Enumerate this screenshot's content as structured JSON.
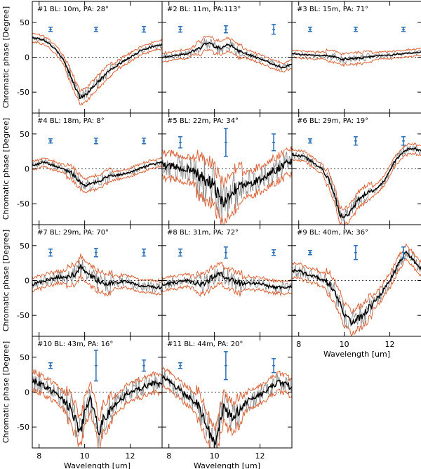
{
  "figure": {
    "x_label": "Wavelength [um]",
    "y_label": "Chromatic phase [Degree]",
    "x_ticks": [
      8,
      10,
      12
    ],
    "y_ticks": [
      -50,
      0,
      50
    ],
    "xlim": [
      7.7,
      13.4
    ],
    "ylim": [
      -80,
      80
    ]
  },
  "colors": {
    "mean": "#000000",
    "raw": "#8c8c8c",
    "envelope": "#d9653b",
    "errorbar": "#2a6fb7",
    "zero": "#000000"
  },
  "chart_data": [
    {
      "type": "line",
      "panel": "#1",
      "label": "#1  BL: 10m, PA: 28°",
      "baseline_m": 10,
      "pa_deg": 28,
      "noise": 3,
      "spread": 6,
      "x": [
        7.8,
        8.2,
        8.6,
        9.0,
        9.3,
        9.6,
        9.8,
        10.0,
        10.3,
        10.6,
        11.0,
        11.5,
        12.0,
        12.5,
        13.0,
        13.4
      ],
      "y": [
        28,
        25,
        15,
        0,
        -20,
        -45,
        -58,
        -55,
        -45,
        -35,
        -22,
        -10,
        0,
        10,
        15,
        18
      ],
      "error_bars": [
        {
          "x": 8.5,
          "half": 3
        },
        {
          "x": 10.5,
          "half": 3
        },
        {
          "x": 12.6,
          "half": 4
        }
      ],
      "error_bar_y": 40
    },
    {
      "type": "line",
      "panel": "#2",
      "label": "#2  BL: 11m, PA:113°",
      "baseline_m": 11,
      "pa_deg": 113,
      "noise": 3,
      "spread": 6,
      "x": [
        7.8,
        8.3,
        8.8,
        9.3,
        9.6,
        9.8,
        10.0,
        10.3,
        10.6,
        11.0,
        11.4,
        11.8,
        12.2,
        12.6,
        13.0,
        13.4
      ],
      "y": [
        0,
        3,
        5,
        12,
        20,
        22,
        15,
        12,
        18,
        10,
        5,
        0,
        -5,
        -10,
        -15,
        -10
      ],
      "error_bars": [
        {
          "x": 8.5,
          "half": 4
        },
        {
          "x": 10.5,
          "half": 5
        },
        {
          "x": 12.6,
          "half": 7
        }
      ],
      "error_bar_y": 40
    },
    {
      "type": "line",
      "panel": "#3",
      "label": "#3  BL: 15m, PA: 71°",
      "baseline_m": 15,
      "pa_deg": 71,
      "noise": 2,
      "spread": 5,
      "x": [
        7.8,
        8.5,
        9.2,
        9.6,
        10.0,
        10.5,
        11.0,
        11.5,
        12.0,
        12.5,
        13.0,
        13.4
      ],
      "y": [
        5,
        3,
        2,
        0,
        -3,
        -2,
        0,
        2,
        3,
        5,
        6,
        8
      ],
      "error_bars": [
        {
          "x": 8.5,
          "half": 3
        },
        {
          "x": 10.5,
          "half": 3
        },
        {
          "x": 12.6,
          "half": 3
        }
      ],
      "error_bar_y": 40
    },
    {
      "type": "line",
      "panel": "#4",
      "label": "#4  BL: 18m, PA:  8°",
      "baseline_m": 18,
      "pa_deg": 8,
      "noise": 3,
      "spread": 6,
      "x": [
        7.8,
        8.2,
        8.6,
        9.0,
        9.4,
        9.7,
        10.0,
        10.4,
        10.8,
        11.2,
        11.6,
        12.0,
        12.4,
        12.8,
        13.2,
        13.4
      ],
      "y": [
        5,
        10,
        5,
        0,
        -5,
        -15,
        -25,
        -20,
        -15,
        -10,
        -8,
        -5,
        0,
        5,
        8,
        10
      ],
      "error_bars": [
        {
          "x": 8.5,
          "half": 3
        },
        {
          "x": 10.5,
          "half": 4
        },
        {
          "x": 12.6,
          "half": 4
        }
      ],
      "error_bar_y": 40
    },
    {
      "type": "line",
      "panel": "#5",
      "label": "#5  BL: 22m, PA: 34°",
      "baseline_m": 22,
      "pa_deg": 34,
      "noise": 12,
      "spread": 18,
      "x": [
        7.8,
        8.3,
        8.8,
        9.2,
        9.6,
        9.9,
        10.2,
        10.5,
        10.8,
        11.2,
        11.6,
        12.0,
        12.5,
        13.0,
        13.4
      ],
      "y": [
        5,
        3,
        0,
        -5,
        -15,
        -20,
        -40,
        -50,
        -30,
        -25,
        -20,
        -15,
        -5,
        5,
        10
      ],
      "error_bars": [
        {
          "x": 8.5,
          "half": 8
        },
        {
          "x": 10.5,
          "half": 20
        },
        {
          "x": 12.6,
          "half": 12
        }
      ],
      "error_bar_y": 38
    },
    {
      "type": "line",
      "panel": "#6",
      "label": "#6  BL: 29m, PA: 19°",
      "baseline_m": 29,
      "pa_deg": 19,
      "noise": 4,
      "spread": 7,
      "x": [
        7.8,
        8.2,
        8.6,
        9.0,
        9.3,
        9.6,
        9.8,
        10.0,
        10.3,
        10.6,
        11.0,
        11.4,
        11.8,
        12.2,
        12.6,
        13.0,
        13.4
      ],
      "y": [
        20,
        18,
        10,
        0,
        -15,
        -40,
        -65,
        -70,
        -60,
        -45,
        -35,
        -30,
        -15,
        10,
        25,
        30,
        25
      ],
      "error_bars": [
        {
          "x": 8.5,
          "half": 3
        },
        {
          "x": 10.5,
          "half": 6
        },
        {
          "x": 12.6,
          "half": 6
        }
      ],
      "error_bar_y": 40
    },
    {
      "type": "line",
      "panel": "#7",
      "label": "#7  BL: 29m, PA: 70°",
      "baseline_m": 29,
      "pa_deg": 70,
      "noise": 5,
      "spread": 9,
      "x": [
        7.8,
        8.3,
        8.8,
        9.2,
        9.6,
        9.8,
        10.0,
        10.3,
        10.6,
        11.0,
        11.4,
        11.8,
        12.2,
        12.6,
        13.0,
        13.4
      ],
      "y": [
        -5,
        0,
        5,
        3,
        10,
        20,
        15,
        5,
        0,
        -5,
        -3,
        0,
        -5,
        -8,
        -10,
        -10
      ],
      "error_bars": [
        {
          "x": 8.5,
          "half": 5
        },
        {
          "x": 10.5,
          "half": 6
        },
        {
          "x": 12.6,
          "half": 5
        }
      ],
      "error_bar_y": 40
    },
    {
      "type": "line",
      "panel": "#8",
      "label": "#8  BL: 31m, PA: 72°",
      "baseline_m": 31,
      "pa_deg": 72,
      "noise": 5,
      "spread": 9,
      "x": [
        7.8,
        8.3,
        8.8,
        9.2,
        9.6,
        9.9,
        10.2,
        10.5,
        10.8,
        11.2,
        11.6,
        12.0,
        12.4,
        12.8,
        13.2,
        13.4
      ],
      "y": [
        -5,
        -3,
        0,
        -5,
        -5,
        5,
        10,
        5,
        0,
        -5,
        -3,
        -5,
        -8,
        -10,
        -10,
        -8
      ],
      "error_bars": [
        {
          "x": 8.5,
          "half": 5
        },
        {
          "x": 10.5,
          "half": 8
        },
        {
          "x": 12.6,
          "half": 4
        }
      ],
      "error_bar_y": 40
    },
    {
      "type": "line",
      "panel": "#9",
      "label": "#9  BL: 40m, PA: 36°",
      "baseline_m": 40,
      "pa_deg": 36,
      "noise": 6,
      "spread": 10,
      "x": [
        7.8,
        8.3,
        8.8,
        9.2,
        9.5,
        9.7,
        9.9,
        10.1,
        10.4,
        10.8,
        11.2,
        11.6,
        12.0,
        12.4,
        12.7,
        13.0,
        13.4
      ],
      "y": [
        15,
        10,
        5,
        0,
        -10,
        -25,
        -40,
        -55,
        -60,
        -50,
        -35,
        -20,
        0,
        25,
        40,
        30,
        15
      ],
      "error_bars": [
        {
          "x": 8.5,
          "half": 3
        },
        {
          "x": 10.5,
          "half": 10
        },
        {
          "x": 12.6,
          "half": 8
        }
      ],
      "error_bar_y": 40
    },
    {
      "type": "line",
      "panel": "#10",
      "label": "#10  BL: 43m, PA: 16°",
      "baseline_m": 43,
      "pa_deg": 16,
      "noise": 9,
      "spread": 13,
      "x": [
        7.8,
        8.2,
        8.6,
        9.0,
        9.3,
        9.6,
        9.8,
        10.0,
        10.2,
        10.4,
        10.6,
        10.8,
        11.2,
        11.6,
        12.0,
        12.4,
        12.8,
        13.2,
        13.4
      ],
      "y": [
        15,
        10,
        0,
        -10,
        -20,
        -40,
        -60,
        -30,
        -10,
        -20,
        -60,
        -40,
        -20,
        -10,
        0,
        5,
        10,
        12,
        10
      ],
      "error_bars": [
        {
          "x": 8.5,
          "half": 4
        },
        {
          "x": 10.5,
          "half": 22
        },
        {
          "x": 12.6,
          "half": 8
        }
      ],
      "error_bar_y": 38
    },
    {
      "type": "line",
      "panel": "#11",
      "label": "#11  BL: 44m, PA: 20°",
      "baseline_m": 44,
      "pa_deg": 20,
      "noise": 9,
      "spread": 13,
      "x": [
        7.8,
        8.2,
        8.6,
        9.0,
        9.3,
        9.6,
        9.8,
        10.0,
        10.2,
        10.4,
        10.6,
        10.8,
        11.2,
        11.6,
        12.0,
        12.4,
        12.8,
        13.2,
        13.4
      ],
      "y": [
        20,
        10,
        0,
        -10,
        -20,
        -40,
        -60,
        -75,
        -50,
        -20,
        -30,
        -40,
        -20,
        -10,
        -5,
        5,
        15,
        10,
        5
      ],
      "error_bars": [
        {
          "x": 8.5,
          "half": 4
        },
        {
          "x": 10.5,
          "half": 20
        },
        {
          "x": 12.6,
          "half": 10
        }
      ],
      "error_bar_y": 38
    }
  ]
}
